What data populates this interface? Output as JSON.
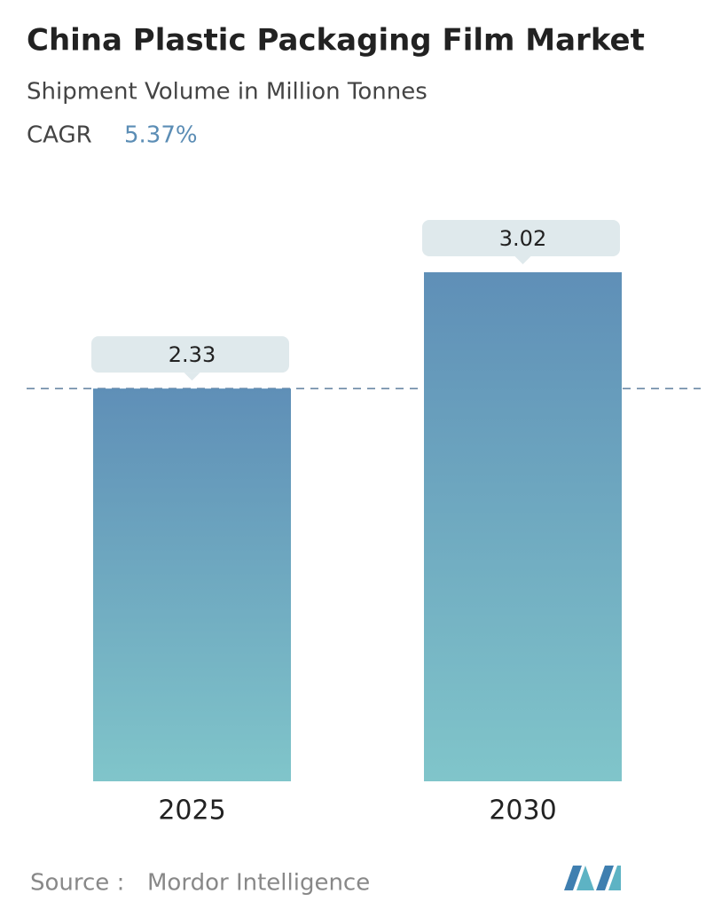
{
  "chart_data": {
    "type": "bar",
    "title": "China Plastic Packaging Film Market",
    "subtitle": "Shipment Volume in Million Tonnes",
    "cagr_label": "CAGR",
    "cagr": "5.37%",
    "categories": [
      "2025",
      "2030"
    ],
    "values": [
      2.33,
      3.02
    ],
    "color_top": "#5f8fb7",
    "color_bottom": "#80c5ca",
    "reference_line": true,
    "source_label": "Source :",
    "source": "Mordor Intelligence"
  }
}
